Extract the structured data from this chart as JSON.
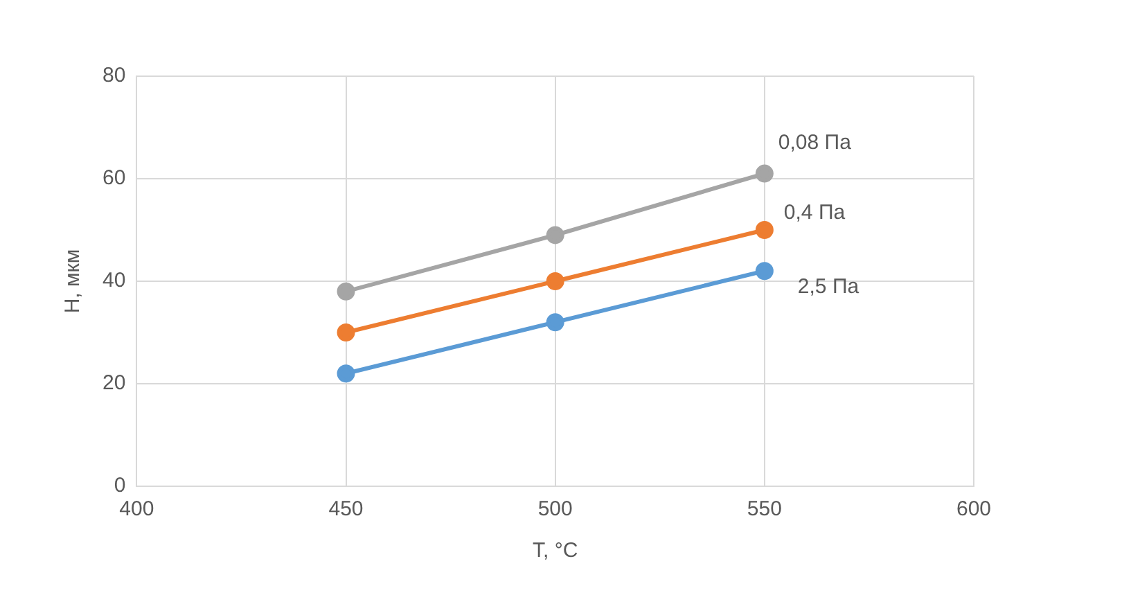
{
  "chart_data": {
    "type": "line",
    "xlabel": "T, °C",
    "ylabel": "H, мкм",
    "x": [
      450,
      500,
      550
    ],
    "series": [
      {
        "name": "0,08 Па",
        "color": "#a5a5a5",
        "values": [
          38,
          49,
          61
        ]
      },
      {
        "name": "0,4 Па",
        "color": "#ed7d31",
        "values": [
          30,
          40,
          50
        ]
      },
      {
        "name": "2,5 Па",
        "color": "#5b9bd5",
        "values": [
          22,
          32,
          42
        ]
      }
    ],
    "xlim": [
      400,
      600
    ],
    "xticks": [
      400,
      450,
      500,
      550,
      600
    ],
    "ylim": [
      0,
      80
    ],
    "yticks": [
      0,
      20,
      40,
      60,
      80
    ],
    "grid": true,
    "legend": false,
    "marker": "circle",
    "line_style": "solid"
  }
}
